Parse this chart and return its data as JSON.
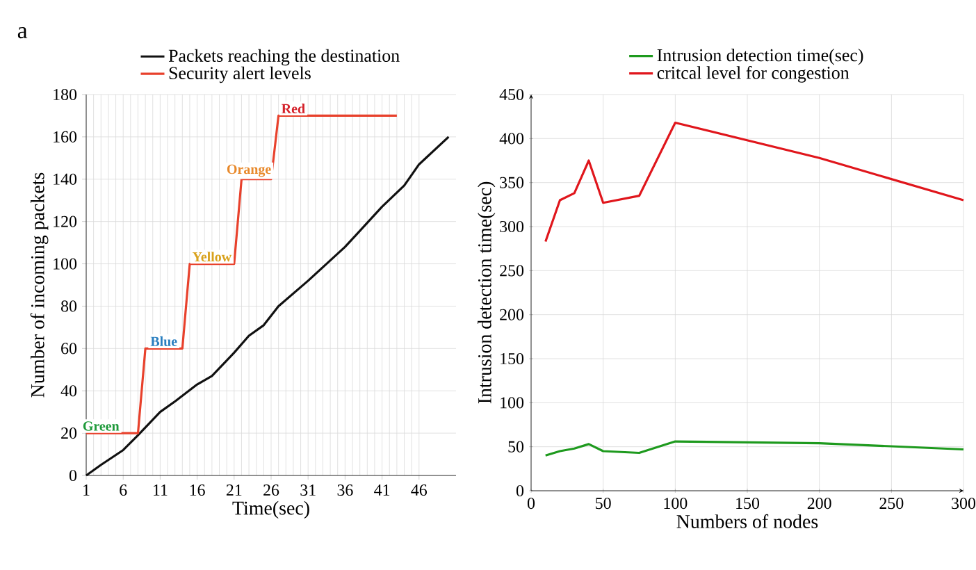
{
  "chart_data": [
    {
      "type": "line",
      "xlabel": "Time(sec)",
      "ylabel": "Number of incoming packets",
      "xlim": [
        1,
        51
      ],
      "ylim": [
        0,
        180
      ],
      "xticks": [
        1,
        6,
        11,
        16,
        21,
        26,
        31,
        36,
        41,
        46
      ],
      "yticks": [
        0,
        20,
        40,
        60,
        80,
        100,
        120,
        140,
        160,
        180
      ],
      "grid": true,
      "legend": "top",
      "line_style": "solid",
      "marker": "none",
      "annotations": [
        "a",
        {
          "text": "Green",
          "x": 3,
          "y": 20
        },
        {
          "text": "Blue",
          "x": 11.5,
          "y": 60
        },
        {
          "text": "Yellow",
          "x": 18,
          "y": 100
        },
        {
          "text": "Orange",
          "x": 23,
          "y": 140
        },
        {
          "text": "Red",
          "x": 29,
          "y": 170
        }
      ],
      "series": [
        {
          "name": "Packets reaching the destination",
          "color": "#111111",
          "x": [
            1,
            3,
            6,
            8,
            11,
            13,
            16,
            18,
            21,
            23,
            25,
            27,
            31,
            36,
            41,
            44,
            46,
            50
          ],
          "values": [
            0,
            5,
            12,
            19,
            30,
            35,
            43,
            47,
            58,
            66,
            71,
            80,
            92,
            108,
            127,
            137,
            147,
            160
          ]
        },
        {
          "name": "Security alert levels",
          "color": "#e8412c",
          "x": [
            1,
            8,
            9,
            14,
            15,
            21,
            22,
            26,
            27,
            43
          ],
          "values": [
            20,
            20,
            60,
            60,
            100,
            100,
            140,
            140,
            170,
            170
          ]
        }
      ]
    },
    {
      "type": "line",
      "xlabel": "Numbers of nodes",
      "ylabel": "Intrusion detection time(sec)",
      "xlim": [
        0,
        300
      ],
      "ylim": [
        0,
        450
      ],
      "xticks": [
        0,
        50,
        100,
        150,
        200,
        250,
        300
      ],
      "yticks": [
        0,
        50,
        100,
        150,
        200,
        250,
        300,
        350,
        400,
        450
      ],
      "grid": true,
      "legend": "top",
      "line_style": "solid",
      "marker": "none",
      "series": [
        {
          "name": "Intrusion detection time(sec)",
          "color": "#1e9a1e",
          "x": [
            10,
            20,
            30,
            40,
            50,
            75,
            100,
            200,
            300
          ],
          "values": [
            40,
            45,
            48,
            53,
            45,
            43,
            56,
            54,
            47
          ]
        },
        {
          "name": "critcal level for congestion",
          "color": "#e0161c",
          "x": [
            10,
            20,
            30,
            40,
            50,
            75,
            100,
            200,
            300
          ],
          "values": [
            283,
            330,
            338,
            375,
            327,
            335,
            418,
            378,
            330
          ]
        }
      ]
    }
  ]
}
